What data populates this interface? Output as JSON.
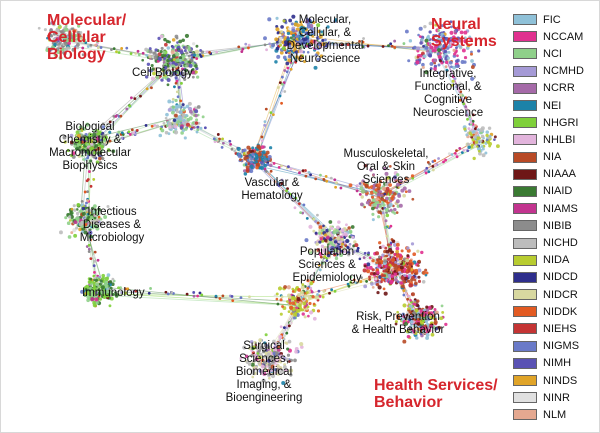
{
  "categories": [
    {
      "id": "molbio",
      "lines": [
        "Molecular/",
        "Cellular",
        "Biology"
      ]
    },
    {
      "id": "neural",
      "lines": [
        "Neural",
        "Systems"
      ]
    },
    {
      "id": "health",
      "lines": [
        "Health Services/",
        "Behavior"
      ]
    }
  ],
  "regions": [
    {
      "id": "cell-biology",
      "lines": [
        "Cell Biology"
      ]
    },
    {
      "id": "mcd-neuroscience",
      "lines": [
        "Molecular,",
        "Cellular, &",
        "Developmental",
        "Neuroscience"
      ]
    },
    {
      "id": "ifc-neuroscience",
      "lines": [
        "Integrative,",
        "Functional, &",
        "Cognitive",
        "Neuroscience"
      ]
    },
    {
      "id": "biochem",
      "lines": [
        "Biological",
        "Chemistry &",
        "Macromolecular",
        "Biophysics"
      ]
    },
    {
      "id": "musculoskeletal",
      "lines": [
        "Musculoskeletal,",
        "Oral & Skin",
        "Sciences"
      ]
    },
    {
      "id": "vascular",
      "lines": [
        "Vascular &",
        "Hematology"
      ]
    },
    {
      "id": "infectious",
      "lines": [
        "Infectious",
        "Diseases &",
        "Microbiology"
      ]
    },
    {
      "id": "population",
      "lines": [
        "Population",
        "Sciences &",
        "Epidemiology"
      ]
    },
    {
      "id": "immunology",
      "lines": [
        "Immunology"
      ]
    },
    {
      "id": "risk",
      "lines": [
        "Risk, Prevention",
        "& Health Behavior"
      ]
    },
    {
      "id": "surgical",
      "lines": [
        "Surgical",
        "Sciences,",
        "Biomedical",
        "Imaging, &",
        "Bioengineering"
      ]
    }
  ],
  "legend": [
    {
      "label": "FIC",
      "color": "#8fc1d8"
    },
    {
      "label": "NCCAM",
      "color": "#e0318f"
    },
    {
      "label": "NCI",
      "color": "#8fd08a"
    },
    {
      "label": "NCMHD",
      "color": "#a59ad6"
    },
    {
      "label": "NCRR",
      "color": "#a56aa8"
    },
    {
      "label": "NEI",
      "color": "#1c82a8"
    },
    {
      "label": "NHGRI",
      "color": "#7fd03a"
    },
    {
      "label": "NHLBI",
      "color": "#e2b4dc"
    },
    {
      "label": "NIA",
      "color": "#b84a26"
    },
    {
      "label": "NIAAA",
      "color": "#6e1616"
    },
    {
      "label": "NIAID",
      "color": "#3a7a32"
    },
    {
      "label": "NIAMS",
      "color": "#c2348f"
    },
    {
      "label": "NIBIB",
      "color": "#8c8c8c"
    },
    {
      "label": "NICHD",
      "color": "#bcbcbc"
    },
    {
      "label": "NIDA",
      "color": "#b8cc30"
    },
    {
      "label": "NIDCD",
      "color": "#2e2e8c"
    },
    {
      "label": "NIDCR",
      "color": "#d8d8a0"
    },
    {
      "label": "NIDDK",
      "color": "#e25a22"
    },
    {
      "label": "NIEHS",
      "color": "#c43434"
    },
    {
      "label": "NIGMS",
      "color": "#6a7ac8"
    },
    {
      "label": "NIMH",
      "color": "#5a52b4"
    },
    {
      "label": "NINDS",
      "color": "#e0a428"
    },
    {
      "label": "NINR",
      "color": "#e0e0e0"
    },
    {
      "label": "NLM",
      "color": "#e4a890"
    }
  ]
}
